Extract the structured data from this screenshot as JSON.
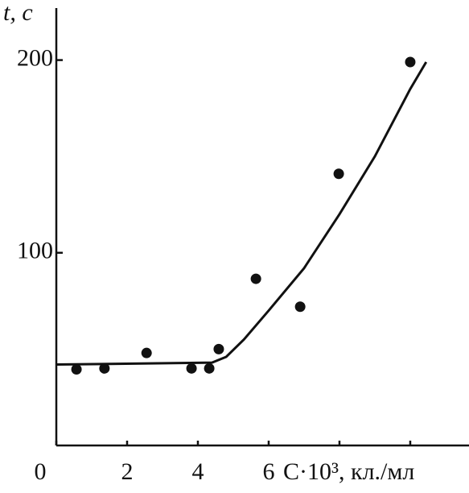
{
  "chart_data": {
    "type": "scatter",
    "y_label": "t, c",
    "x_label": "C·10³, кл./мл",
    "xlim": [
      0,
      11.66
    ],
    "ylim": [
      0,
      227
    ],
    "xticks": [
      0,
      2,
      4,
      6,
      {
        "value": 8,
        "label": null
      },
      {
        "value": 10,
        "label": null
      }
    ],
    "yticks": [
      100,
      200
    ],
    "color": "#111111",
    "points": {
      "x": [
        0.57,
        1.36,
        2.55,
        3.82,
        4.32,
        4.59,
        5.64,
        6.89,
        7.98,
        10.0
      ],
      "y": [
        39.5,
        40,
        48,
        40,
        40,
        50,
        86.5,
        72,
        141,
        199
      ]
    },
    "fit": {
      "x": [
        0,
        4.4,
        4.8,
        5.3,
        6,
        7,
        8,
        9,
        10,
        10.45
      ],
      "y": [
        42,
        43,
        46,
        55,
        70,
        92,
        120,
        150,
        185,
        199
      ]
    }
  }
}
